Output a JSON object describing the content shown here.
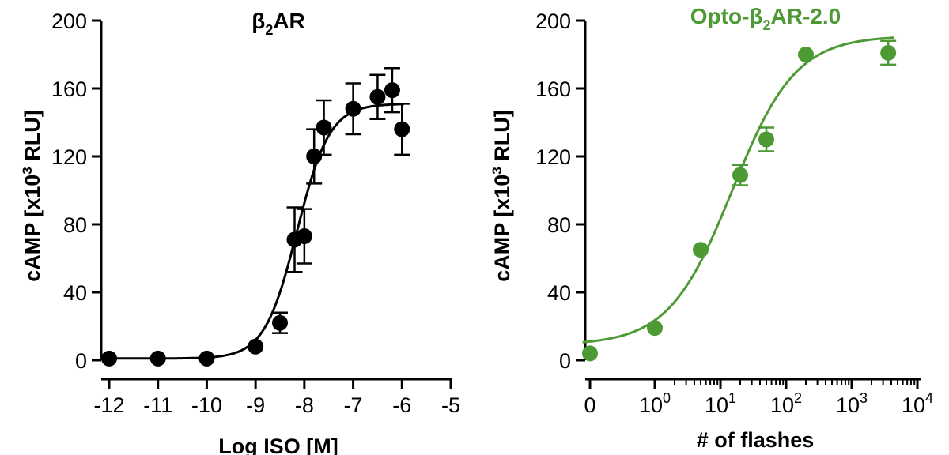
{
  "chart_data": [
    {
      "type": "scatter",
      "title": "β",
      "title_sub": "2",
      "title_rest": "AR",
      "title_color": "#000000",
      "color": "#000000",
      "xlabel": "Log ISO [M]",
      "ylabel": "cAMP [x10",
      "ylabel_sup": "3",
      "ylabel_rest": " RLU]",
      "xlim": [
        -12,
        -5
      ],
      "ylim": [
        0,
        200
      ],
      "x_ticks": [
        -12,
        -11,
        -10,
        -9,
        -8,
        -7,
        -6,
        -5
      ],
      "x_tick_labels": [
        "-12",
        "-11",
        "-10",
        "-9",
        "-8",
        "-7",
        "-6",
        "-5"
      ],
      "y_ticks": [
        0,
        40,
        80,
        120,
        160,
        200
      ],
      "y_tick_labels": [
        "0",
        "40",
        "80",
        "120",
        "160",
        "200"
      ],
      "x_scale": "linear",
      "grid": false,
      "fit": "sigmoidal",
      "points": [
        {
          "x": -12,
          "y": 1,
          "err": 0
        },
        {
          "x": -11,
          "y": 1,
          "err": 0
        },
        {
          "x": -10,
          "y": 1,
          "err": 0
        },
        {
          "x": -9,
          "y": 8,
          "err": 0
        },
        {
          "x": -8.5,
          "y": 22,
          "err": 6
        },
        {
          "x": -8.2,
          "y": 71,
          "err": 19
        },
        {
          "x": -8,
          "y": 73,
          "err": 16
        },
        {
          "x": -7.8,
          "y": 120,
          "err": 16
        },
        {
          "x": -7.6,
          "y": 137,
          "err": 16
        },
        {
          "x": -7,
          "y": 148,
          "err": 15
        },
        {
          "x": -6.5,
          "y": 155,
          "err": 13
        },
        {
          "x": -6.2,
          "y": 159,
          "err": 13
        },
        {
          "x": -6,
          "y": 136,
          "err": 15
        }
      ],
      "fit_params": {
        "bottom": 1,
        "top": 151,
        "logEC50": -8.15,
        "hill": 1.3
      }
    },
    {
      "type": "scatter",
      "title": "Opto-β",
      "title_sub": "2",
      "title_rest": "AR-2.0",
      "title_color": "#4d9a35",
      "color": "#4d9a35",
      "xlabel": "# of flashes",
      "ylabel": "cAMP [x10",
      "ylabel_sup": "3",
      "ylabel_rest": " RLU]",
      "xlim": [
        0,
        10000
      ],
      "ylim": [
        0,
        200
      ],
      "x_scale": "log-with-zero",
      "x_ticks": [
        0,
        1,
        10,
        100,
        1000,
        10000
      ],
      "x_tick_labels": [
        {
          "base": "0",
          "exp": ""
        },
        {
          "base": "10",
          "exp": "0"
        },
        {
          "base": "10",
          "exp": "1"
        },
        {
          "base": "10",
          "exp": "2"
        },
        {
          "base": "10",
          "exp": "3"
        },
        {
          "base": "10",
          "exp": "4"
        }
      ],
      "y_ticks": [
        0,
        40,
        80,
        120,
        160,
        200
      ],
      "y_tick_labels": [
        "0",
        "40",
        "80",
        "120",
        "160",
        "200"
      ],
      "grid": false,
      "fit": "sigmoidal",
      "points": [
        {
          "x": 0,
          "y": 4,
          "err": 0
        },
        {
          "x": 1,
          "y": 19,
          "err": 0
        },
        {
          "x": 5,
          "y": 65,
          "err": 0
        },
        {
          "x": 20,
          "y": 109,
          "err": 6
        },
        {
          "x": 50,
          "y": 130,
          "err": 7
        },
        {
          "x": 200,
          "y": 180,
          "err": 0
        },
        {
          "x": 3600,
          "y": 181,
          "err": 7
        }
      ],
      "fit_params": {
        "bottom": 9,
        "top": 191,
        "logEC50": 1.18,
        "hill": 0.9
      }
    }
  ]
}
